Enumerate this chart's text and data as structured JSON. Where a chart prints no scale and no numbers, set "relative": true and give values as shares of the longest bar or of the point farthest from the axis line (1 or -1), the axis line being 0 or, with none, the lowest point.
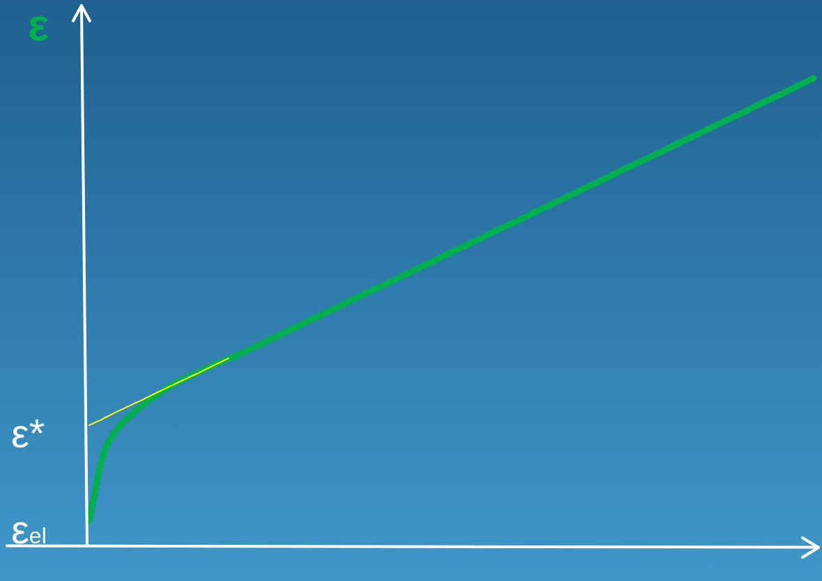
{
  "chart_data": {
    "type": "line",
    "relative": true,
    "ylabel": "ε",
    "marker": "none",
    "categories": [
      null,
      null,
      null,
      null,
      null,
      null,
      null,
      null,
      null,
      null,
      null,
      null,
      null,
      null,
      null,
      null,
      null,
      null,
      null,
      null,
      null,
      null,
      null,
      null,
      null,
      null,
      null,
      null,
      null,
      null,
      null,
      null,
      null,
      null,
      null,
      null,
      null,
      null,
      null,
      null,
      null,
      null,
      null,
      null,
      null,
      null,
      null,
      null,
      null,
      null,
      null,
      null,
      null
    ],
    "series": [
      {
        "color": "#00b050",
        "values": [
          0.053,
          0.194,
          0.249,
          0.28,
          0.305,
          0.325,
          0.345,
          0.36,
          0.374,
          0.388,
          0.4,
          0.413,
          0.427,
          0.442,
          0.456,
          0.47,
          0.485,
          0.499,
          0.513,
          0.528,
          0.542,
          0.556,
          0.57,
          0.585,
          0.599,
          0.613,
          0.628,
          0.642,
          0.656,
          0.671,
          0.685,
          0.699,
          0.714,
          0.728,
          0.742,
          0.757,
          0.771,
          0.785,
          0.8,
          0.814,
          0.828,
          0.842,
          0.857,
          0.871,
          0.885,
          0.9,
          0.914,
          0.928,
          0.943,
          0.957,
          0.971,
          0.986,
          1.0
        ]
      },
      {
        "type": "line",
        "color": "#ffff00",
        "values": [
          0.258,
          0.272,
          0.287,
          0.301,
          0.315,
          0.33,
          0.344,
          0.358,
          0.372,
          0.387,
          0.401,
          null,
          null,
          null,
          null,
          null,
          null,
          null,
          null,
          null,
          null,
          null,
          null,
          null,
          null,
          null,
          null,
          null,
          null,
          null,
          null,
          null,
          null,
          null,
          null,
          null,
          null,
          null,
          null,
          null,
          null,
          null,
          null,
          null,
          null,
          null,
          null,
          null,
          null,
          null,
          null,
          null,
          null
        ]
      }
    ],
    "annotations": [
      "ε*",
      "ε$_{el}$"
    ]
  }
}
